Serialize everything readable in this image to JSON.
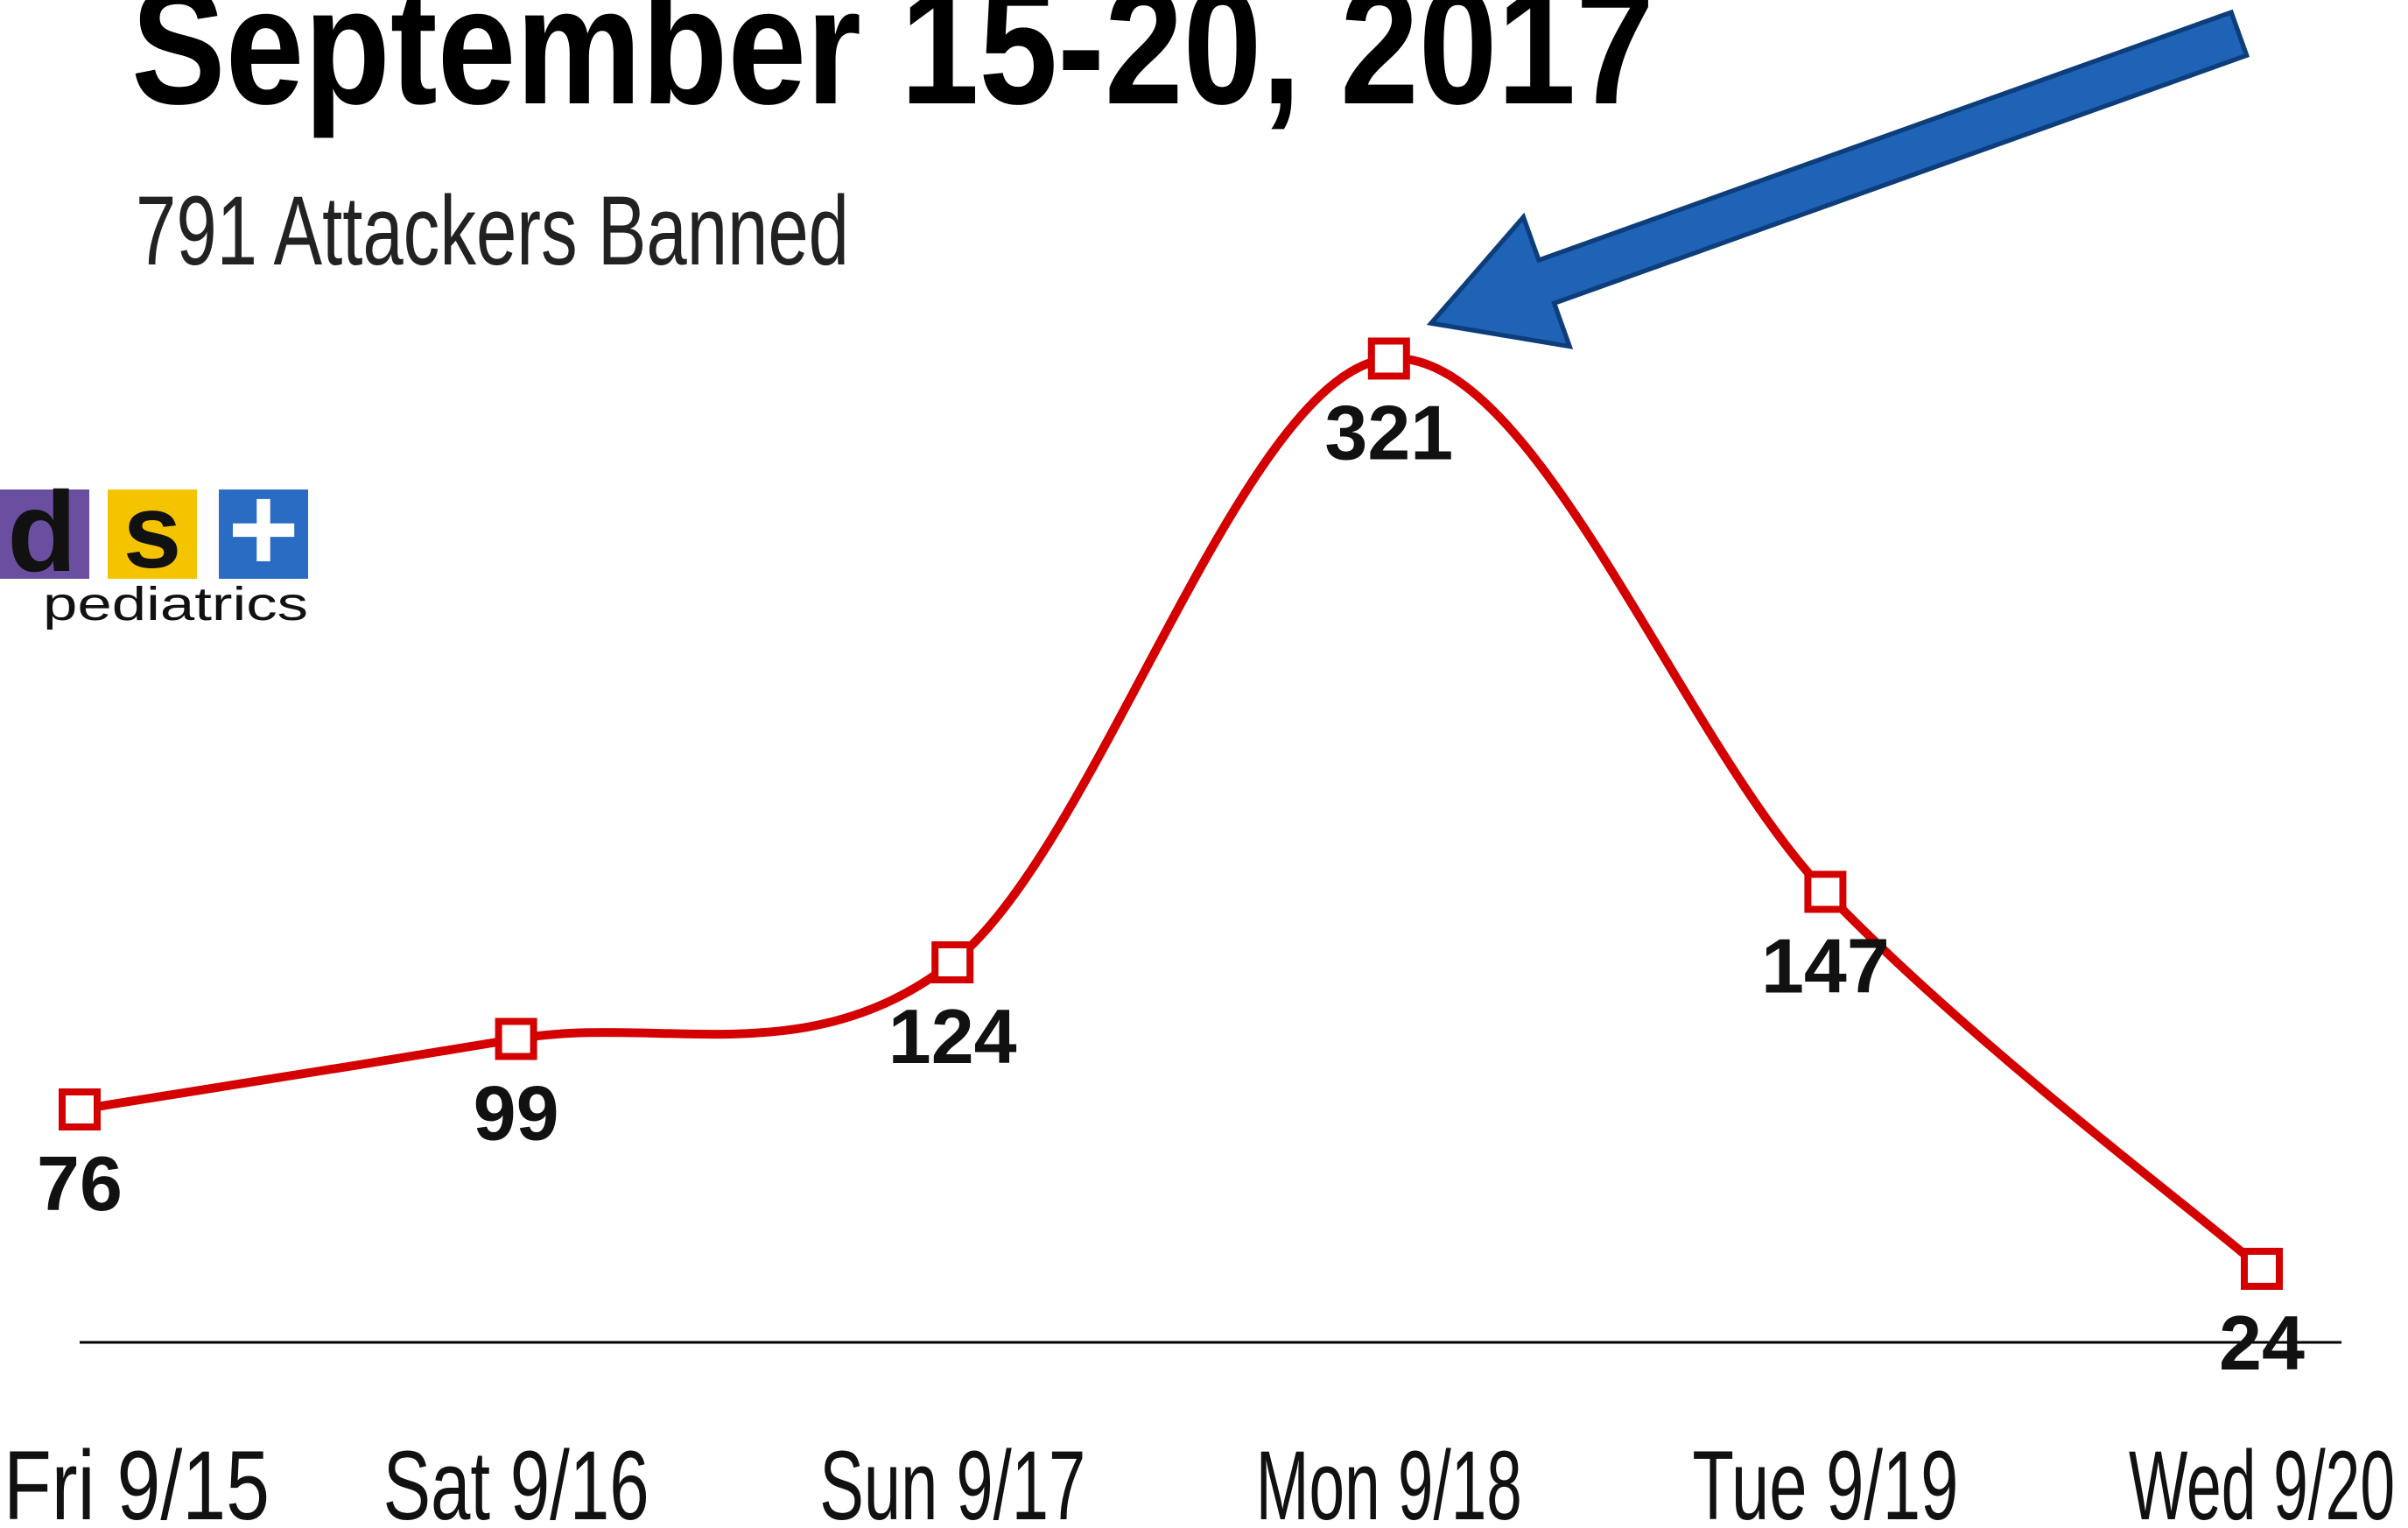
{
  "chart_data": {
    "type": "line",
    "title": "September 15-20, 2017",
    "subtitle": "791 Attackers Banned",
    "categories": [
      "Fri 9/15",
      "Sat 9/16",
      "Sun 9/17",
      "Mon 9/18",
      "Tue 9/19",
      "Wed 9/20"
    ],
    "series": [
      {
        "name": "Attackers Banned",
        "color": "#d40000",
        "values": [
          76,
          99,
          124,
          321,
          147,
          24
        ]
      }
    ],
    "ylim": [
      0,
      350
    ],
    "smooth": true,
    "logo": {
      "letters": [
        "d",
        "s",
        "+"
      ],
      "text": "pediatrics"
    }
  }
}
